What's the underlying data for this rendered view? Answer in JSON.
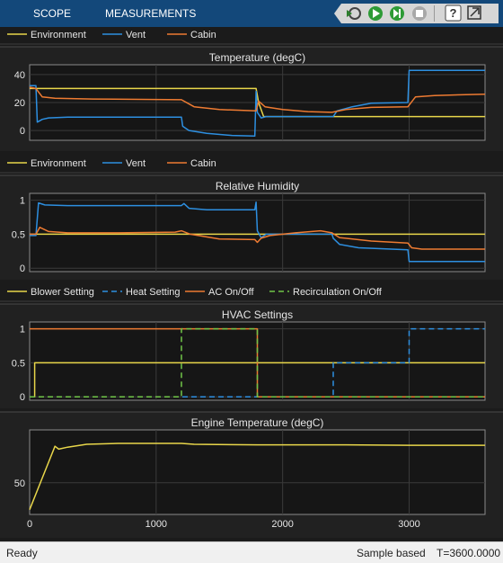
{
  "toolbar": {
    "tabs": [
      "SCOPE",
      "MEASUREMENTS"
    ],
    "icons": [
      "step-back-icon",
      "run-icon",
      "step-forward-icon",
      "stop-icon",
      "help-icon",
      "undock-icon"
    ]
  },
  "colors": {
    "environment": "#e8d64a",
    "vent": "#2d8fe0",
    "cabin": "#ee7b32",
    "recirc": "#71c648",
    "axes_bg": "#161616",
    "panel_bg": "#212121",
    "grid": "#3a3a3a"
  },
  "chart_data": [
    {
      "type": "line",
      "title": "Temperature (degC)",
      "legend": [
        "Environment",
        "Vent",
        "Cabin"
      ],
      "legend_position": "top",
      "xlim": [
        0,
        3600
      ],
      "ylim": [
        -7,
        47
      ],
      "yticks": [
        0,
        20,
        40
      ],
      "grid": true,
      "series": [
        {
          "name": "Environment",
          "x": [
            0,
            1790,
            1810,
            1850,
            2400,
            3600
          ],
          "y": [
            30,
            30,
            20,
            10,
            10,
            10
          ]
        },
        {
          "name": "Vent",
          "x": [
            0,
            50,
            60,
            100,
            150,
            300,
            1200,
            1210,
            1260,
            1400,
            1600,
            1780,
            1790,
            1800,
            1830,
            1870,
            2390,
            2400,
            2430,
            2550,
            2700,
            2990,
            3000,
            3600
          ],
          "y": [
            32,
            32,
            6,
            8,
            9,
            9.5,
            9.5,
            3,
            0,
            -2,
            -3.5,
            -4,
            28,
            13,
            9,
            10,
            10,
            10,
            14,
            17,
            19.5,
            20,
            43,
            43
          ]
        },
        {
          "name": "Cabin",
          "x": [
            0,
            50,
            100,
            200,
            500,
            1200,
            1300,
            1500,
            1790,
            1810,
            1860,
            2000,
            2200,
            2390,
            2500,
            2700,
            2990,
            3050,
            3200,
            3600
          ],
          "y": [
            31,
            30,
            24,
            23,
            22.5,
            22,
            17,
            15,
            14,
            21,
            17,
            15,
            13.5,
            13,
            15,
            16.5,
            17,
            24,
            25,
            26
          ]
        }
      ]
    },
    {
      "type": "line",
      "title": "Relative Humidity",
      "legend": [
        "Environment",
        "Vent",
        "Cabin"
      ],
      "legend_position": "top",
      "xlim": [
        0,
        3600
      ],
      "ylim": [
        -0.05,
        1.1
      ],
      "yticks": [
        0,
        0.5,
        1
      ],
      "yticklabels": [
        "0",
        "0.5",
        "1"
      ],
      "grid": true,
      "series": [
        {
          "name": "Environment",
          "x": [
            0,
            3600
          ],
          "y": [
            0.5,
            0.5
          ]
        },
        {
          "name": "Vent",
          "x": [
            0,
            50,
            70,
            120,
            300,
            1000,
            1200,
            1220,
            1260,
            1400,
            1780,
            1790,
            1800,
            1830,
            1870,
            2390,
            2400,
            2450,
            2600,
            2990,
            3000,
            3600
          ],
          "y": [
            0.48,
            0.48,
            0.96,
            0.93,
            0.92,
            0.92,
            0.92,
            0.95,
            0.88,
            0.86,
            0.86,
            0.97,
            0.55,
            0.45,
            0.5,
            0.5,
            0.44,
            0.35,
            0.3,
            0.27,
            0.1,
            0.1
          ]
        },
        {
          "name": "Cabin",
          "x": [
            0,
            50,
            80,
            150,
            300,
            700,
            1150,
            1200,
            1270,
            1500,
            1780,
            1800,
            1830,
            1900,
            2100,
            2300,
            2390,
            2450,
            2700,
            2990,
            3020,
            3100,
            3600
          ],
          "y": [
            0.5,
            0.5,
            0.6,
            0.54,
            0.52,
            0.52,
            0.53,
            0.55,
            0.5,
            0.43,
            0.42,
            0.38,
            0.44,
            0.48,
            0.52,
            0.55,
            0.52,
            0.45,
            0.4,
            0.37,
            0.3,
            0.28,
            0.28
          ]
        }
      ]
    },
    {
      "type": "line",
      "title": "HVAC Settings",
      "legend": [
        "Blower Setting",
        "Heat Setting",
        "AC On/Off",
        "Recirculation On/Off"
      ],
      "legend_position": "top",
      "xlim": [
        0,
        3600
      ],
      "ylim": [
        -0.05,
        1.1
      ],
      "yticks": [
        0,
        0.5,
        1
      ],
      "yticklabels": [
        "0",
        "0.5",
        "1"
      ],
      "grid": true,
      "series": [
        {
          "name": "Blower Setting",
          "x": [
            0,
            40,
            40,
            3600
          ],
          "y": [
            0,
            0,
            0.5,
            0.5
          ]
        },
        {
          "name": "Heat Setting",
          "x": [
            0,
            2400,
            2400,
            3000,
            3000,
            3600
          ],
          "y": [
            0,
            0,
            0.5,
            0.5,
            1,
            1
          ]
        },
        {
          "name": "AC On/Off",
          "x": [
            0,
            1800,
            1800,
            3600
          ],
          "y": [
            1,
            1,
            0,
            0
          ]
        },
        {
          "name": "Recirculation On/Off",
          "x": [
            0,
            1200,
            1200,
            1800,
            1800,
            3600
          ],
          "y": [
            0,
            0,
            1,
            1,
            0,
            0
          ]
        }
      ]
    },
    {
      "type": "line",
      "title": "Engine Temperature (degC)",
      "xlim": [
        0,
        3600
      ],
      "ylim": [
        17,
        105
      ],
      "yticks": [
        50
      ],
      "xticks": [
        0,
        1000,
        2000,
        3000
      ],
      "grid": true,
      "series": [
        {
          "name": "Engine",
          "x": [
            0,
            100,
            200,
            230,
            300,
            450,
            700,
            1000,
            1200,
            1300,
            1800,
            2500,
            3000,
            3600
          ],
          "y": [
            22,
            55,
            88,
            85,
            87,
            90,
            91,
            91,
            91,
            90,
            89.5,
            89.5,
            89,
            89
          ]
        }
      ]
    }
  ],
  "status": {
    "left": "Ready",
    "mode": "Sample based",
    "time": "T=3600.0000"
  }
}
